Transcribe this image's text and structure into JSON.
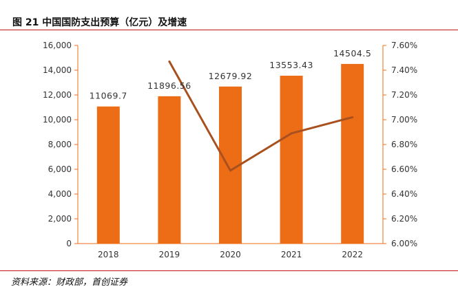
{
  "header": {
    "title": "图 21 中国国防支出预算（亿元）及增速"
  },
  "footer": {
    "source": "资料来源：财政部，首创证券"
  },
  "colors": {
    "bar": "#ED6C16",
    "line": "#A9501F",
    "axis": "#ED6C16",
    "rule": "#C0141B",
    "text": "#333333"
  },
  "chart_data": {
    "type": "bar",
    "categories": [
      "2018",
      "2019",
      "2020",
      "2021",
      "2022"
    ],
    "series": [
      {
        "kind": "bar",
        "axis": "left",
        "values": [
          11069.7,
          11896.56,
          12679.92,
          13553.43,
          14504.5
        ],
        "labels": [
          "11069.7",
          "11896.56",
          "12679.92",
          "13553.43",
          "14504.5"
        ]
      },
      {
        "kind": "line",
        "axis": "right",
        "values": [
          null,
          7.47,
          6.59,
          6.89,
          7.02
        ]
      }
    ],
    "left_axis": {
      "min": 0,
      "max": 16000,
      "ticks": [
        "0",
        "2,000",
        "4,000",
        "6,000",
        "8,000",
        "10,000",
        "12,000",
        "14,000",
        "16,000"
      ]
    },
    "right_axis": {
      "min": 6.0,
      "max": 7.6,
      "ticks": [
        "6.00%",
        "6.20%",
        "6.40%",
        "6.60%",
        "6.80%",
        "7.00%",
        "7.20%",
        "7.40%",
        "7.60%"
      ]
    },
    "grid": false,
    "legend": "none"
  }
}
